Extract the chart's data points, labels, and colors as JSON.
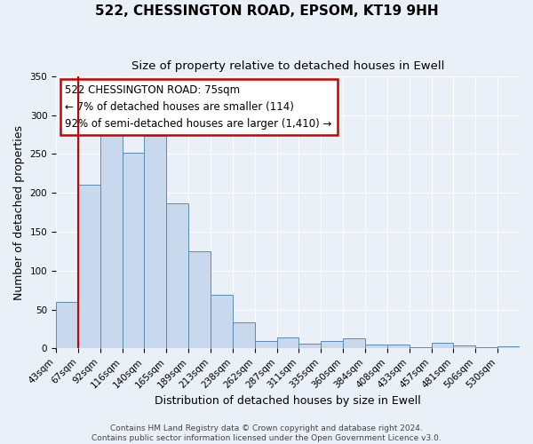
{
  "title": "522, CHESSINGTON ROAD, EPSOM, KT19 9HH",
  "subtitle": "Size of property relative to detached houses in Ewell",
  "xlabel": "Distribution of detached houses by size in Ewell",
  "ylabel": "Number of detached properties",
  "bin_labels": [
    "43sqm",
    "67sqm",
    "92sqm",
    "116sqm",
    "140sqm",
    "165sqm",
    "189sqm",
    "213sqm",
    "238sqm",
    "262sqm",
    "287sqm",
    "311sqm",
    "335sqm",
    "360sqm",
    "384sqm",
    "408sqm",
    "433sqm",
    "457sqm",
    "481sqm",
    "506sqm",
    "530sqm"
  ],
  "bar_heights": [
    60,
    210,
    278,
    252,
    273,
    186,
    125,
    69,
    34,
    10,
    14,
    6,
    10,
    13,
    5,
    5,
    1,
    7,
    4,
    1,
    3
  ],
  "bar_color": "#c9d9ed",
  "bar_edge_color": "#5b8ab5",
  "vline_x": 1,
  "vline_color": "#cc0000",
  "annotation_title": "522 CHESSINGTON ROAD: 75sqm",
  "annotation_line1": "← 7% of detached houses are smaller (114)",
  "annotation_line2": "92% of semi-detached houses are larger (1,410) →",
  "annotation_box_color": "#cc0000",
  "ylim": [
    0,
    350
  ],
  "yticks": [
    0,
    50,
    100,
    150,
    200,
    250,
    300,
    350
  ],
  "footer1": "Contains HM Land Registry data © Crown copyright and database right 2024.",
  "footer2": "Contains public sector information licensed under the Open Government Licence v3.0.",
  "bg_color": "#eaf0f8",
  "plot_bg_color": "#eaf0f8",
  "grid_color": "#ffffff",
  "title_fontsize": 11,
  "subtitle_fontsize": 9.5,
  "axis_label_fontsize": 9,
  "tick_fontsize": 7.5,
  "footer_fontsize": 6.5,
  "annotation_fontsize": 8.5
}
